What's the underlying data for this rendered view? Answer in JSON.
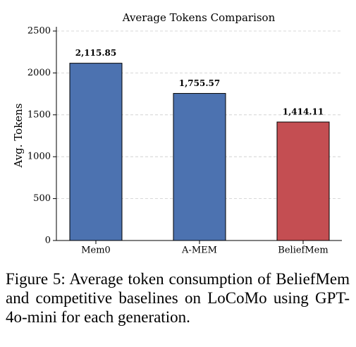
{
  "chart_data": {
    "type": "bar",
    "title": "Average Tokens Comparison",
    "y_label": "Avg. Tokens",
    "categories": [
      "Mem0",
      "A-MEM",
      "BeliefMem"
    ],
    "values": [
      2115.85,
      1755.57,
      1414.11
    ],
    "value_labels": [
      "2,115.85",
      "1,755.57",
      "1,414.11"
    ],
    "colors": [
      "#4c72b0",
      "#4c72b0",
      "#c44e52"
    ],
    "ylim": [
      0,
      2500
    ],
    "yticks": [
      0,
      500,
      1000,
      1500,
      2000,
      2500
    ],
    "grid": true
  },
  "caption": "Figure 5: Average token consumption of BeliefMem and competitive baselines on LoCoMo using GPT-4o-mini for each generation."
}
